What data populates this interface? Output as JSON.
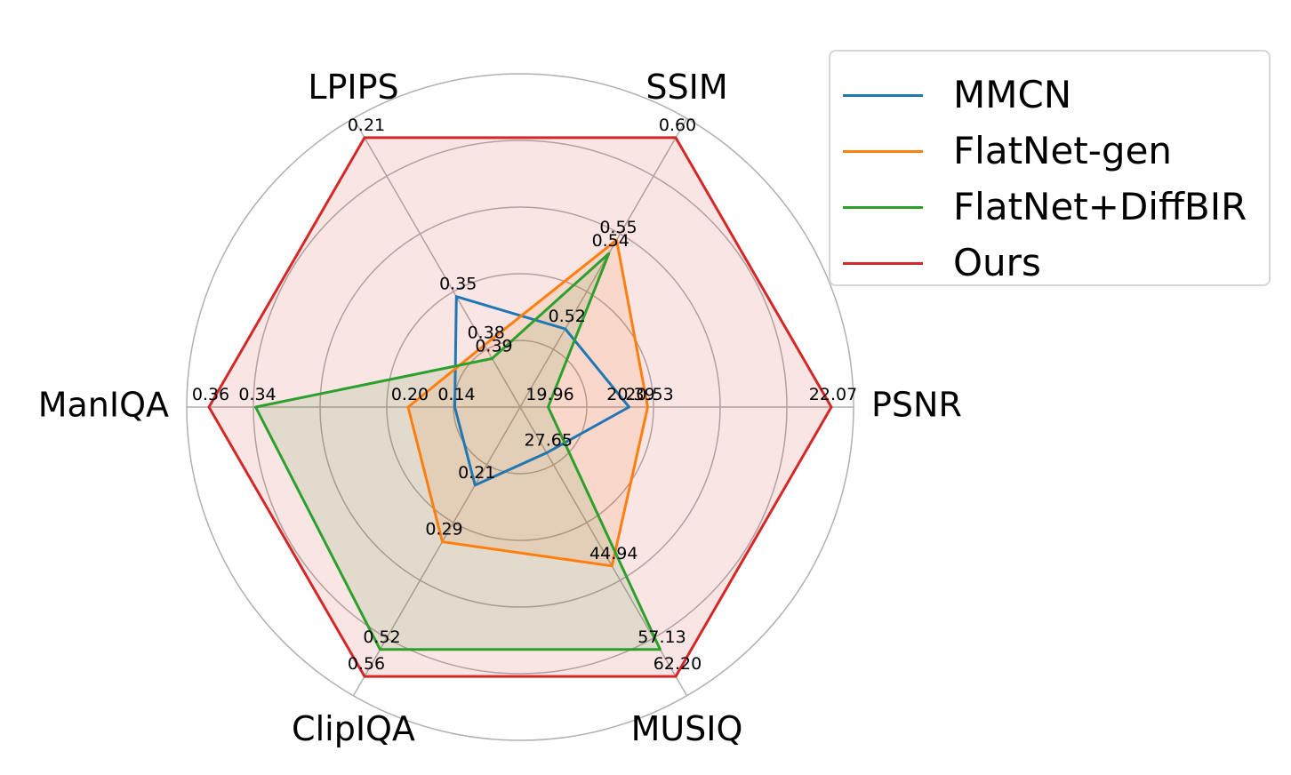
{
  "chart_data": {
    "type": "radar",
    "axes": [
      "PSNR",
      "SSIM",
      "LPIPS",
      "ManIQA",
      "ClipIQA",
      "MUSIQ"
    ],
    "grid": true,
    "legend_position": "top-right",
    "series": [
      {
        "name": "MMCN",
        "color": "#1f77b4",
        "values": [
          20.39,
          0.52,
          0.35,
          0.14,
          0.21,
          27.65
        ],
        "labels": [
          "20.39",
          "0.52",
          "0.35",
          "0.14",
          "0.21",
          "27.65"
        ],
        "radius": [
          0.35,
          0.29,
          0.41,
          0.21,
          0.29,
          0.17
        ],
        "fill": false
      },
      {
        "name": "FlatNet-gen",
        "color": "#ff7f0e",
        "values": [
          20.53,
          0.55,
          0.38,
          0.2,
          0.29,
          44.94
        ],
        "labels": [
          "20.53",
          "0.55",
          "0.38",
          "0.20",
          "0.29",
          "44.94"
        ],
        "radius": [
          0.41,
          0.62,
          0.23,
          0.36,
          0.5,
          0.59
        ],
        "fill": true
      },
      {
        "name": "FlatNet+DiffBIR",
        "color": "#2ca02c",
        "values": [
          19.96,
          0.54,
          0.39,
          0.34,
          0.52,
          57.13
        ],
        "labels": [
          "19.96",
          "0.54",
          "0.39",
          "0.34",
          "0.52",
          "57.13"
        ],
        "radius": [
          0.09,
          0.57,
          0.18,
          0.85,
          0.9,
          0.9
        ],
        "fill": true
      },
      {
        "name": "Ours",
        "color": "#d62728",
        "values": [
          22.07,
          0.6,
          0.21,
          0.36,
          0.56,
          62.2
        ],
        "labels": [
          "22.07",
          "0.60",
          "0.21",
          "0.36",
          "0.56",
          "62.20"
        ],
        "radius": [
          1.0,
          1.0,
          1.0,
          1.0,
          1.0,
          1.0
        ],
        "fill": true
      }
    ]
  }
}
